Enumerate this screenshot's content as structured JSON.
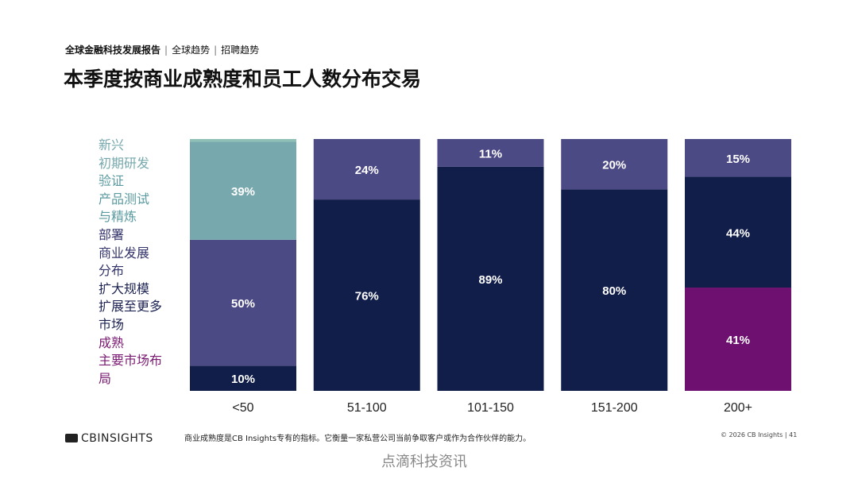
{
  "header": {
    "report": "全球金融科技发展报告",
    "section1": "全球趋势",
    "section2": "招聘趋势"
  },
  "title": "本季度按商业成熟度和员工人数分布交易",
  "legend": [
    {
      "lines": [
        "新兴",
        "初期研发"
      ],
      "color": "#77a8ad"
    },
    {
      "lines": [
        "验证",
        "产品测试",
        "与精炼"
      ],
      "color": "#5a9aa0"
    },
    {
      "lines": [
        "部署",
        "商业发展",
        "分布"
      ],
      "color": "#33336b"
    },
    {
      "lines": [
        "扩大规模",
        "扩展至更多",
        "市场"
      ],
      "color": "#1b2250"
    },
    {
      "lines": [
        "成熟",
        "主要市场布",
        "局"
      ],
      "color": "#7a1a72"
    }
  ],
  "chart_data": {
    "type": "bar",
    "stacked": true,
    "categories": [
      "<50",
      "51-100",
      "101-150",
      "151-200",
      "200+"
    ],
    "series": [
      {
        "name": "成熟",
        "color": "#6e1070",
        "values": [
          0,
          0,
          0,
          0,
          41
        ]
      },
      {
        "name": "扩大规模",
        "color": "#121e4a",
        "values": [
          10,
          76,
          89,
          80,
          44
        ]
      },
      {
        "name": "部署",
        "color": "#4c4a85",
        "values": [
          50,
          24,
          11,
          20,
          15
        ]
      },
      {
        "name": "验证",
        "color": "#77a8ad",
        "values": [
          39,
          0,
          0,
          0,
          0
        ]
      },
      {
        "name": "新兴",
        "color": "#8fc0b5",
        "values": [
          1,
          0,
          0,
          0,
          0
        ]
      }
    ],
    "data_labels": [
      [
        null,
        "10%",
        "50%",
        "39%",
        null
      ],
      [
        null,
        "76%",
        "24%",
        null,
        null
      ],
      [
        null,
        "89%",
        "11%",
        null,
        null
      ],
      [
        null,
        "80%",
        "20%",
        null,
        null
      ],
      [
        "41%",
        "44%",
        "15%",
        null,
        null
      ]
    ],
    "ylim": [
      0,
      100
    ],
    "grid": false
  },
  "footer": {
    "logo": "CBINSIGHTS",
    "note": "商业成熟度是CB Insights专有的指标。它衡量一家私营公司当前争取客户或作为合作伙伴的能力。",
    "copyright": "© 2026 CB Insights  |  41",
    "watermark": "点滴科技资讯"
  }
}
